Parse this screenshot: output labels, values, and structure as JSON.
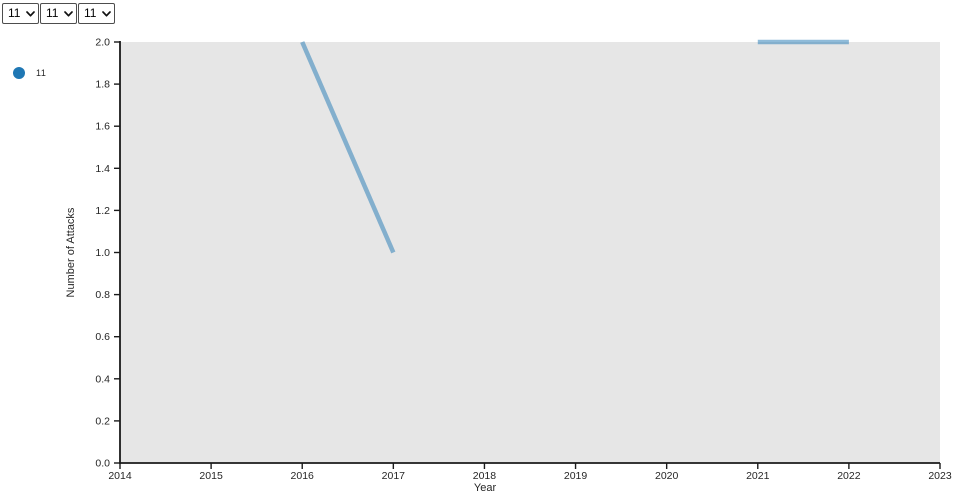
{
  "controls": {
    "selects": [
      {
        "value": "11"
      },
      {
        "value": "11"
      },
      {
        "value": "11"
      }
    ]
  },
  "legend": {
    "position": "left",
    "items": [
      {
        "label": "11",
        "color": "#1f77b4"
      }
    ]
  },
  "chart_data": {
    "type": "line",
    "title": "",
    "xlabel": "Year",
    "ylabel": "Number of Attacks",
    "xlim": [
      2014,
      2023
    ],
    "ylim": [
      0.0,
      2.0
    ],
    "xticks": [
      2014,
      2015,
      2016,
      2017,
      2018,
      2019,
      2020,
      2021,
      2022,
      2023
    ],
    "xtick_labels": [
      "2014",
      "2015",
      "2016",
      "2017",
      "2018",
      "2019",
      "2020",
      "2021",
      "2022",
      "2023"
    ],
    "yticks": [
      0.0,
      0.2,
      0.4,
      0.6,
      0.8,
      1.0,
      1.2,
      1.4,
      1.6,
      1.8,
      2.0
    ],
    "ytick_labels": [
      "0.0",
      "0.2",
      "0.4",
      "0.6",
      "0.8",
      "1.0",
      "1.2",
      "1.4",
      "1.6",
      "1.8",
      "2.0"
    ],
    "grid": false,
    "plot_background": "#e6e6e6",
    "axis_color": "#1a1a1a",
    "tick_label_color": "#262626",
    "legend_position": "left",
    "series": [
      {
        "name": "11",
        "color": "#1f77b4",
        "line_opacity": 0.5,
        "line_width": 4.5,
        "x": [
          2014,
          2015,
          2016,
          2017,
          2018,
          2019,
          2020,
          2021,
          2022,
          2023
        ],
        "y": [
          null,
          null,
          2,
          1,
          null,
          null,
          null,
          2,
          2,
          null
        ]
      }
    ]
  }
}
